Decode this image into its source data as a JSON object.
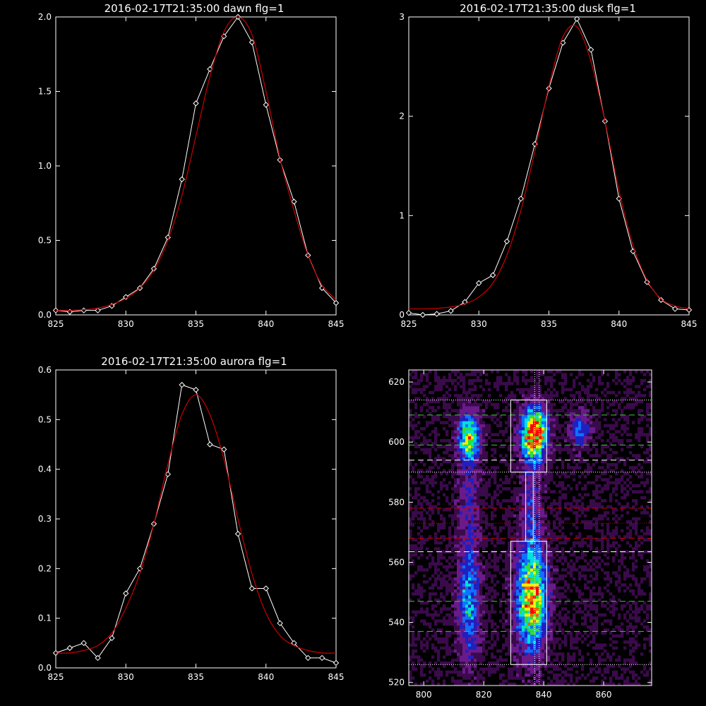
{
  "chart_data": [
    {
      "type": "line",
      "title": "2016-02-17T21:35:00 dawn flg=1",
      "xlim": [
        825,
        845
      ],
      "ylim": [
        0,
        2.0
      ],
      "xticks": [
        825,
        830,
        835,
        840,
        845
      ],
      "yticks": [
        0.0,
        0.5,
        1.0,
        1.5,
        2.0
      ],
      "ytick_labels": [
        "0.0",
        "0.5",
        "1.0",
        "1.5",
        "2.0"
      ],
      "xtick_labels": [
        "825",
        "830",
        "835",
        "840",
        "845"
      ],
      "series": [
        {
          "color": "#ffffff",
          "marker": "diamond",
          "x": [
            825,
            826,
            827,
            828,
            829,
            830,
            831,
            832,
            833,
            834,
            835,
            836,
            837,
            838,
            839,
            840,
            841,
            842,
            843,
            844,
            845
          ],
          "y": [
            0.03,
            0.02,
            0.03,
            0.03,
            0.06,
            0.12,
            0.18,
            0.31,
            0.52,
            0.91,
            1.42,
            1.65,
            1.87,
            2.0,
            1.83,
            1.41,
            1.04,
            0.76,
            0.4,
            0.18,
            0.08
          ]
        },
        {
          "color": "#cc0000",
          "marker": "none",
          "x": [
            825,
            826,
            827,
            828,
            829,
            830,
            831,
            832,
            833,
            834,
            835,
            836,
            837,
            838,
            839,
            840,
            841,
            842,
            843,
            844,
            845
          ],
          "y": [
            0.03,
            0.03,
            0.035,
            0.045,
            0.07,
            0.11,
            0.18,
            0.3,
            0.5,
            0.8,
            1.2,
            1.6,
            1.9,
            2.0,
            1.88,
            1.5,
            1.05,
            0.7,
            0.4,
            0.2,
            0.1
          ]
        }
      ]
    },
    {
      "type": "line",
      "title": "2016-02-17T21:35:00 dusk flg=1",
      "xlim": [
        825,
        845
      ],
      "ylim": [
        0,
        3
      ],
      "xticks": [
        825,
        830,
        835,
        840,
        845
      ],
      "yticks": [
        0,
        1,
        2,
        3
      ],
      "ytick_labels": [
        "0",
        "1",
        "2",
        "3"
      ],
      "xtick_labels": [
        "825",
        "830",
        "835",
        "840",
        "845"
      ],
      "series": [
        {
          "color": "#ffffff",
          "marker": "diamond",
          "x": [
            825,
            826,
            827,
            828,
            829,
            830,
            831,
            832,
            833,
            834,
            835,
            836,
            837,
            838,
            839,
            840,
            841,
            842,
            843,
            844,
            845
          ],
          "y": [
            0.02,
            0.0,
            0.01,
            0.04,
            0.13,
            0.32,
            0.4,
            0.74,
            1.17,
            1.72,
            2.28,
            2.74,
            2.98,
            2.67,
            1.95,
            1.17,
            0.64,
            0.33,
            0.15,
            0.06,
            0.05
          ]
        },
        {
          "color": "#cc0000",
          "marker": "none",
          "x": [
            825,
            826,
            827,
            828,
            829,
            830,
            831,
            832,
            833,
            834,
            835,
            836,
            837,
            838,
            839,
            840,
            841,
            842,
            843,
            844,
            845
          ],
          "y": [
            0.06,
            0.06,
            0.065,
            0.08,
            0.11,
            0.18,
            0.32,
            0.6,
            1.05,
            1.65,
            2.3,
            2.8,
            2.9,
            2.55,
            1.95,
            1.25,
            0.7,
            0.35,
            0.16,
            0.09,
            0.06
          ]
        }
      ]
    },
    {
      "type": "line",
      "title": "2016-02-17T21:35:00 aurora flg=1",
      "xlim": [
        825,
        845
      ],
      "ylim": [
        0,
        0.6
      ],
      "xticks": [
        825,
        830,
        835,
        840,
        845
      ],
      "yticks": [
        0.0,
        0.1,
        0.2,
        0.3,
        0.4,
        0.5,
        0.6
      ],
      "ytick_labels": [
        "0.0",
        "0.1",
        "0.2",
        "0.3",
        "0.4",
        "0.5",
        "0.6"
      ],
      "xtick_labels": [
        "825",
        "830",
        "835",
        "840",
        "845"
      ],
      "series": [
        {
          "color": "#ffffff",
          "marker": "diamond",
          "x": [
            825,
            826,
            827,
            828,
            829,
            830,
            831,
            832,
            833,
            834,
            835,
            836,
            837,
            838,
            839,
            840,
            841,
            842,
            843,
            844,
            845
          ],
          "y": [
            0.03,
            0.04,
            0.05,
            0.02,
            0.06,
            0.15,
            0.2,
            0.29,
            0.39,
            0.57,
            0.56,
            0.45,
            0.44,
            0.27,
            0.16,
            0.16,
            0.09,
            0.05,
            0.02,
            0.02,
            0.01
          ]
        },
        {
          "color": "#cc0000",
          "marker": "none",
          "x": [
            825,
            826,
            827,
            828,
            829,
            830,
            831,
            832,
            833,
            834,
            835,
            836,
            837,
            838,
            839,
            840,
            841,
            842,
            843,
            844,
            845
          ],
          "y": [
            0.03,
            0.03,
            0.035,
            0.045,
            0.07,
            0.12,
            0.19,
            0.29,
            0.41,
            0.51,
            0.55,
            0.51,
            0.42,
            0.3,
            0.19,
            0.11,
            0.065,
            0.045,
            0.035,
            0.03,
            0.03
          ]
        }
      ]
    },
    {
      "type": "heatmap",
      "xlim": [
        795,
        876
      ],
      "ylim": [
        519,
        624
      ],
      "xticks": [
        800,
        820,
        840,
        860
      ],
      "yticks": [
        520,
        540,
        560,
        580,
        600,
        620
      ],
      "xtick_labels": [
        "800",
        "820",
        "840",
        "860"
      ],
      "ytick_labels": [
        "520",
        "540",
        "560",
        "580",
        "600",
        "620"
      ],
      "colormap": [
        "#000000",
        "#3a0a4a",
        "#6a1a8a",
        "#2020c0",
        "#1070ff",
        "#00e0e0",
        "#30e030",
        "#f0f000",
        "#ff6000",
        "#ff0000"
      ],
      "blobs": [
        {
          "x": 815,
          "y": 602,
          "sx": 2.5,
          "sy": 5,
          "amp": 0.62
        },
        {
          "x": 815,
          "y": 580,
          "sx": 2.5,
          "sy": 18,
          "amp": 0.22
        },
        {
          "x": 815,
          "y": 545,
          "sx": 2.5,
          "sy": 12,
          "amp": 0.42
        },
        {
          "x": 837,
          "y": 603,
          "sx": 3,
          "sy": 6,
          "amp": 0.98
        },
        {
          "x": 836,
          "y": 580,
          "sx": 2.5,
          "sy": 12,
          "amp": 0.22
        },
        {
          "x": 836,
          "y": 548,
          "sx": 3.5,
          "sy": 12,
          "amp": 0.82
        },
        {
          "x": 852,
          "y": 604,
          "sx": 2.5,
          "sy": 4,
          "amp": 0.36
        }
      ],
      "vlines": {
        "color": "#ffffff",
        "style": "dotted",
        "x": [
          837,
          838.5
        ]
      },
      "hlines": [
        {
          "y": 614,
          "color": "#ffffff",
          "style": "dotted"
        },
        {
          "y": 609,
          "color": "#33cc33",
          "style": "dashed"
        },
        {
          "y": 599,
          "color": "#33cc33",
          "style": "dashed"
        },
        {
          "y": 594,
          "color": "#ffffff",
          "style": "dashed"
        },
        {
          "y": 590,
          "color": "#ffffff",
          "style": "dotted"
        },
        {
          "y": 578,
          "color": "#cc0000",
          "style": "dashed"
        },
        {
          "y": 573,
          "color": "#cc0000",
          "style": "dotted"
        },
        {
          "y": 568,
          "color": "#cc0000",
          "style": "dashed"
        },
        {
          "y": 563.5,
          "color": "#ffffff",
          "style": "dashed"
        },
        {
          "y": 547,
          "color": "#33cc33",
          "style": "dashed"
        },
        {
          "y": 537,
          "color": "#33cc33",
          "style": "dashed"
        },
        {
          "y": 526,
          "color": "#ffffff",
          "style": "dotted"
        }
      ],
      "boxes": [
        {
          "x0": 829,
          "x1": 841,
          "y0": 590,
          "y1": 614,
          "color": "#ffffff"
        },
        {
          "x0": 829,
          "x1": 841,
          "y0": 526,
          "y1": 567,
          "color": "#ffffff"
        },
        {
          "x0": 834,
          "x1": 836.5,
          "y0": 567,
          "y1": 590,
          "color": "#ffffff"
        }
      ]
    }
  ]
}
